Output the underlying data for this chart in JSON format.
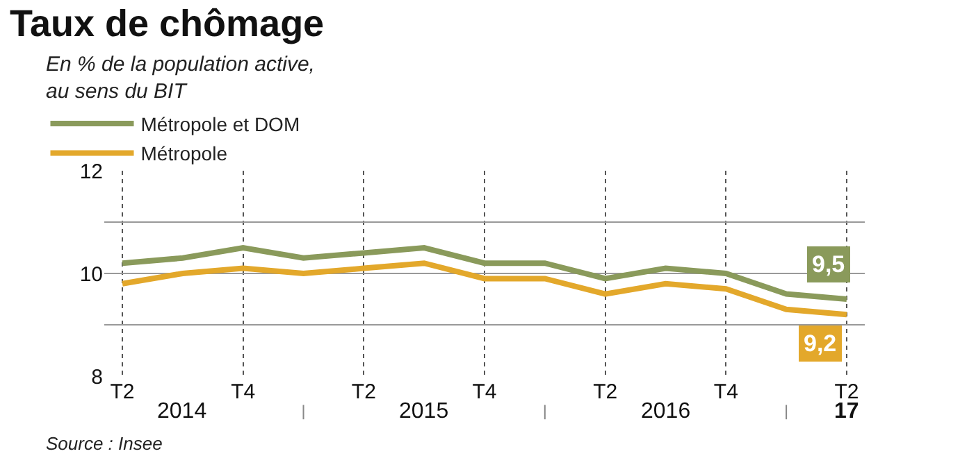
{
  "chart_data": {
    "type": "line",
    "title": "Taux de chômage",
    "subtitle": "En % de la population active,\nau sens du BIT",
    "categories": [
      "T2",
      null,
      "T4",
      null,
      "T2",
      null,
      "T4",
      null,
      "T2",
      null,
      "T4",
      null,
      "T2"
    ],
    "series": [
      {
        "name": "Métropole et DOM",
        "color": "#8a9a5b",
        "values": [
          10.2,
          10.3,
          10.5,
          10.3,
          10.4,
          10.5,
          10.2,
          10.2,
          9.9,
          10.1,
          10.0,
          9.6,
          9.5
        ],
        "value_labels": [
          null,
          null,
          null,
          null,
          null,
          null,
          null,
          null,
          null,
          null,
          null,
          null,
          "9,5"
        ]
      },
      {
        "name": "Métropole",
        "color": "#e3a82b",
        "values": [
          9.8,
          10.0,
          10.1,
          10.0,
          10.1,
          10.2,
          9.9,
          9.9,
          9.6,
          9.8,
          9.7,
          9.3,
          9.2
        ],
        "value_labels": [
          null,
          null,
          null,
          null,
          null,
          null,
          null,
          null,
          null,
          null,
          null,
          null,
          "9,2"
        ]
      }
    ],
    "ylim": [
      8,
      12
    ],
    "yticks": [
      8,
      {
        "value": 9,
        "label": null
      },
      10,
      {
        "value": 11,
        "label": null
      },
      12
    ],
    "grid": true,
    "legend": "top left",
    "marker": "none",
    "line_style": "solid",
    "annotations": [
      "2014",
      "2015",
      "2016",
      "17",
      "Source : Insee"
    ]
  }
}
